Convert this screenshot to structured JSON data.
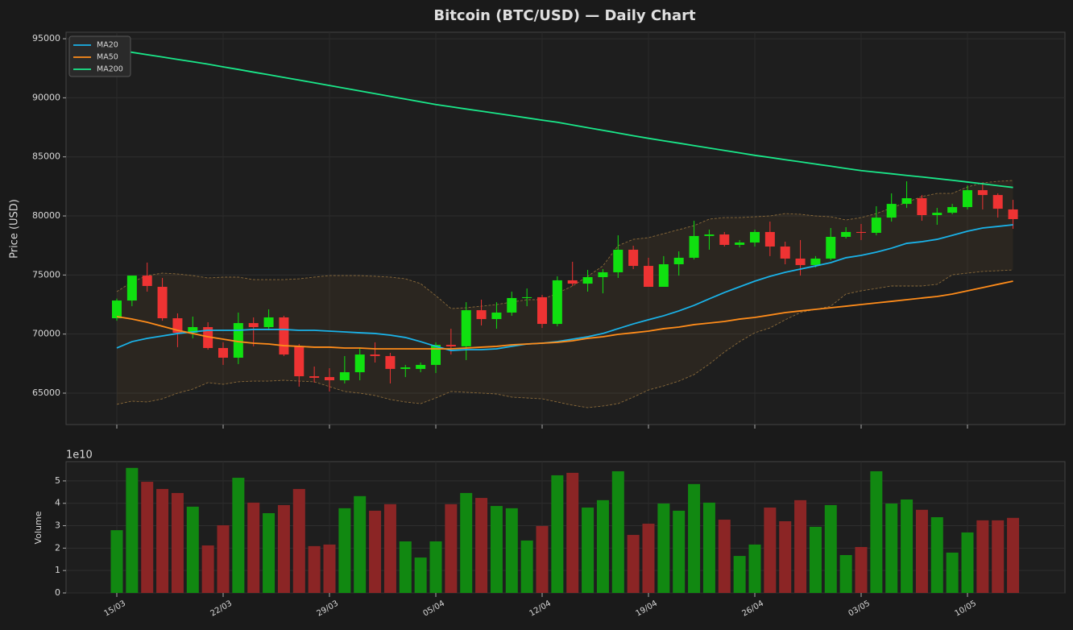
{
  "chart_data": [
    {
      "type": "candlestick",
      "title": "Bitcoin (BTC/USD) — Daily Chart",
      "ylabel": "Price (USD)",
      "categories": [
        "15/03",
        null,
        null,
        null,
        null,
        null,
        null,
        "22/03",
        null,
        null,
        null,
        null,
        null,
        null,
        "29/03",
        null,
        null,
        null,
        null,
        null,
        null,
        "05/04",
        null,
        null,
        null,
        null,
        null,
        null,
        "12/04",
        null,
        null,
        null,
        null,
        null,
        null,
        "19/04",
        null,
        null,
        null,
        null,
        null,
        null,
        "26/04",
        null,
        null,
        null,
        null,
        null,
        null,
        "03/05",
        null,
        null,
        null,
        null,
        null,
        null,
        "10/05",
        null,
        null,
        null
      ],
      "open": [
        71340,
        72840,
        74950,
        74000,
        71340,
        70110,
        70590,
        68820,
        68000,
        70930,
        70590,
        71410,
        68960,
        66430,
        66360,
        66090,
        66770,
        68270,
        68140,
        67050,
        67050,
        67390,
        69090,
        68960,
        72020,
        71270,
        71820,
        73050,
        73120,
        70860,
        74550,
        74270,
        74820,
        75230,
        77140,
        75770,
        74000,
        75910,
        76460,
        78300,
        78430,
        77550,
        77750,
        78640,
        77410,
        76390,
        75840,
        76390,
        78230,
        78640,
        78570,
        79860,
        81020,
        81500,
        80070,
        80270,
        80750,
        82180,
        81770,
        80550
      ],
      "high": [
        73000,
        74950,
        76050,
        74750,
        71750,
        71480,
        71000,
        69300,
        71820,
        71410,
        72090,
        71550,
        69160,
        67250,
        67110,
        68140,
        68820,
        69300,
        68410,
        67390,
        67590,
        69300,
        70450,
        72700,
        72910,
        72700,
        73590,
        73860,
        73320,
        74890,
        76120,
        75430,
        75500,
        78360,
        77480,
        76460,
        76600,
        77000,
        79590,
        78840,
        78640,
        77960,
        78840,
        79520,
        77820,
        77960,
        76600,
        78980,
        79050,
        79320,
        80820,
        81910,
        82930,
        81770,
        80680,
        81020,
        82590,
        82730,
        81910,
        81360
      ],
      "low": [
        71130,
        72360,
        73590,
        71130,
        68890,
        69640,
        68680,
        67390,
        67460,
        68960,
        70320,
        68140,
        65550,
        65890,
        65140,
        65820,
        66090,
        67590,
        65820,
        66360,
        66770,
        66700,
        68270,
        67800,
        70730,
        70450,
        71550,
        72360,
        70520,
        70660,
        74070,
        73590,
        73450,
        74750,
        75500,
        74000,
        74070,
        74950,
        76320,
        77140,
        77410,
        77340,
        77410,
        76600,
        75910,
        74950,
        75640,
        76250,
        78090,
        77960,
        78360,
        79520,
        80680,
        79590,
        79250,
        80140,
        80550,
        80550,
        79860,
        78910
      ],
      "close": [
        72840,
        74950,
        74070,
        71340,
        70110,
        70590,
        68820,
        68000,
        70930,
        70590,
        71410,
        68270,
        66430,
        66300,
        66090,
        66770,
        68270,
        68140,
        67050,
        67180,
        67390,
        69090,
        68960,
        72020,
        71270,
        71820,
        73050,
        73120,
        70860,
        74550,
        74270,
        74820,
        75230,
        77140,
        75770,
        74000,
        75910,
        76460,
        78300,
        78430,
        77550,
        77750,
        78640,
        77410,
        76390,
        75840,
        76390,
        78230,
        78640,
        78570,
        79860,
        81020,
        81500,
        80070,
        80270,
        80750,
        82180,
        81770,
        80610,
        79730
      ],
      "up_color": "#10e010",
      "down_color": "#ee3333",
      "series": [
        {
          "name": "MA20",
          "color": "#1ab2e8",
          "values": [
            68820,
            69360,
            69640,
            69840,
            70050,
            70180,
            70320,
            70320,
            70320,
            70390,
            70390,
            70390,
            70320,
            70320,
            70250,
            70180,
            70110,
            70050,
            69910,
            69710,
            69360,
            68960,
            68610,
            68680,
            68680,
            68750,
            68960,
            69160,
            69230,
            69360,
            69570,
            69770,
            70050,
            70460,
            70860,
            71210,
            71550,
            71960,
            72430,
            72980,
            73520,
            74000,
            74480,
            74890,
            75230,
            75500,
            75770,
            76050,
            76460,
            76660,
            76930,
            77270,
            77680,
            77820,
            78020,
            78360,
            78710,
            78980,
            79110,
            79250
          ]
        },
        {
          "name": "MA50",
          "color": "#ff8c1a",
          "values": [
            71480,
            71270,
            71000,
            70660,
            70320,
            70050,
            69770,
            69570,
            69360,
            69230,
            69160,
            69020,
            68960,
            68890,
            68890,
            68820,
            68820,
            68750,
            68750,
            68750,
            68750,
            68750,
            68750,
            68820,
            68890,
            68960,
            69090,
            69160,
            69230,
            69300,
            69430,
            69640,
            69770,
            69980,
            70110,
            70250,
            70460,
            70590,
            70800,
            70930,
            71070,
            71270,
            71410,
            71610,
            71820,
            71960,
            72090,
            72230,
            72360,
            72500,
            72640,
            72770,
            72910,
            73050,
            73180,
            73390,
            73660,
            73930,
            74210,
            74480
          ]
        },
        {
          "name": "MA200",
          "color": "#1ae88a",
          "values": [
            94050,
            93850,
            93650,
            93450,
            93250,
            93050,
            92850,
            92620,
            92400,
            92170,
            91950,
            91720,
            91500,
            91270,
            91040,
            90810,
            90580,
            90350,
            90120,
            89890,
            89660,
            89430,
            89240,
            89050,
            88870,
            88680,
            88490,
            88300,
            88110,
            87930,
            87700,
            87470,
            87250,
            87020,
            86790,
            86570,
            86360,
            86160,
            85950,
            85750,
            85540,
            85340,
            85130,
            84950,
            84760,
            84580,
            84390,
            84210,
            84020,
            83840,
            83700,
            83570,
            83430,
            83300,
            83160,
            83020,
            82870,
            82720,
            82560,
            82410
          ]
        }
      ],
      "bollinger": {
        "color": "#8a6a3a",
        "upper": [
          73590,
          74410,
          74950,
          75160,
          75090,
          74950,
          74750,
          74820,
          74820,
          74610,
          74610,
          74610,
          74680,
          74820,
          74950,
          74950,
          74950,
          74890,
          74820,
          74680,
          74270,
          73250,
          72160,
          72230,
          72360,
          72500,
          72710,
          72910,
          72910,
          73460,
          74070,
          74890,
          75770,
          77480,
          78020,
          78160,
          78500,
          78840,
          79180,
          79730,
          79860,
          79860,
          79930,
          80000,
          80200,
          80140,
          80000,
          79930,
          79660,
          79860,
          80200,
          80680,
          81160,
          81640,
          81910,
          81910,
          82450,
          82800,
          82930,
          83000
        ],
        "lower": [
          64050,
          64320,
          64250,
          64520,
          65000,
          65340,
          65890,
          65750,
          65960,
          66020,
          66020,
          66090,
          66020,
          65960,
          65550,
          65140,
          65000,
          64800,
          64460,
          64250,
          64110,
          64590,
          65140,
          65070,
          65000,
          64930,
          64660,
          64590,
          64520,
          64250,
          63980,
          63770,
          63910,
          64110,
          64660,
          65270,
          65610,
          66020,
          66570,
          67460,
          68480,
          69360,
          70110,
          70520,
          71210,
          71820,
          72090,
          72360,
          73390,
          73660,
          73860,
          74070,
          74070,
          74070,
          74210,
          75020,
          75160,
          75300,
          75360,
          75430
        ]
      },
      "ylim": [
        62340,
        95550
      ],
      "yticks": [
        65000,
        70000,
        75000,
        80000,
        85000,
        90000,
        95000
      ],
      "grid": true,
      "legend": "upper left"
    },
    {
      "type": "bar",
      "ylabel": "Volume",
      "offset_label": "1e10",
      "values": [
        2.8,
        5.58,
        4.96,
        4.64,
        4.46,
        3.85,
        2.12,
        3.02,
        5.14,
        4.03,
        3.56,
        3.92,
        4.64,
        2.09,
        2.16,
        3.78,
        4.32,
        3.67,
        3.96,
        2.3,
        1.58,
        2.3,
        3.96,
        4.46,
        4.24,
        3.88,
        3.78,
        2.34,
        2.99,
        5.25,
        5.36,
        3.81,
        4.14,
        5.43,
        2.59,
        3.09,
        3.99,
        3.67,
        4.86,
        4.03,
        3.27,
        1.65,
        2.16,
        3.81,
        3.2,
        4.14,
        2.95,
        3.92,
        1.69,
        2.05,
        5.43,
        3.99,
        4.17,
        3.71,
        3.38,
        1.8,
        2.7,
        3.24,
        3.24,
        3.35
      ],
      "up_color": "#118811",
      "down_color": "#8b2525",
      "ylim": [
        0,
        5.86
      ],
      "yticks": [
        0,
        1,
        2,
        3,
        4,
        5
      ],
      "grid": true
    }
  ]
}
